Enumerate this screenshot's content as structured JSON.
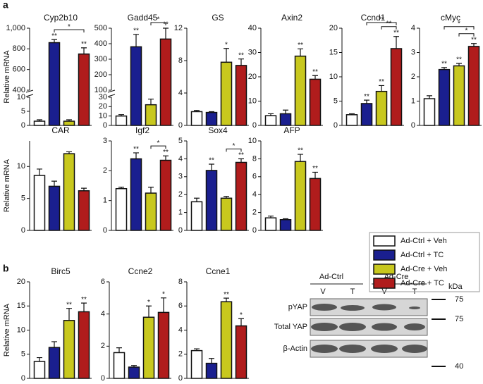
{
  "panel_labels": [
    "a",
    "b"
  ],
  "legend": [
    {
      "name": "Ad-Ctrl + Veh",
      "color": "#ffffff"
    },
    {
      "name": "Ad-Ctrl + TC",
      "color": "#1a1f8f"
    },
    {
      "name": "Ad-Cre + Veh",
      "color": "#c8c81e"
    },
    {
      "name": "Ad-Cre + TC",
      "color": "#b01c1c"
    }
  ],
  "chart_data": [
    {
      "type": "bar",
      "title": "Cyp2b10",
      "ylabel": "Relative mRNA",
      "segments": [
        {
          "ylim": [
            0,
            10
          ],
          "yticks": [
            0,
            5,
            10
          ]
        },
        {
          "ylim": [
            400,
            1000
          ],
          "yticks": [
            400,
            600,
            800,
            {
              "value": 1000,
              "label": "1,000"
            }
          ]
        }
      ],
      "values": [
        1.5,
        860,
        1.5,
        750
      ],
      "errors": [
        0.5,
        30,
        0.5,
        60
      ],
      "annotations": [
        null,
        "**",
        null,
        "**"
      ],
      "comparisons": [
        {
          "bars": [
            1,
            3
          ],
          "label": "*"
        }
      ]
    },
    {
      "type": "bar",
      "title": "Gadd45",
      "segments": [
        {
          "ylim": [
            0,
            30
          ],
          "yticks": [
            0,
            10,
            20,
            30
          ]
        },
        {
          "ylim": [
            100,
            500
          ],
          "yticks": [
            100,
            200,
            300,
            400,
            500
          ]
        }
      ],
      "values": [
        10,
        380,
        22,
        430
      ],
      "errors": [
        1.5,
        80,
        6,
        70
      ],
      "annotations": [
        null,
        "**",
        null,
        "**"
      ],
      "comparisons": [
        {
          "bars": [
            2,
            3
          ],
          "label": "*"
        }
      ]
    },
    {
      "type": "bar",
      "title": "GS",
      "ylim": [
        0,
        12
      ],
      "yticks": [
        0,
        4,
        8,
        12
      ],
      "values": [
        1.7,
        1.6,
        7.8,
        7.4
      ],
      "errors": [
        0.15,
        0.1,
        1.7,
        0.8
      ],
      "annotations": [
        null,
        null,
        "*",
        "**"
      ]
    },
    {
      "type": "bar",
      "title": "Axin2",
      "ylim": [
        0,
        40
      ],
      "yticks": [
        0,
        10,
        20,
        30,
        40
      ],
      "values": [
        4,
        4.8,
        28.5,
        19
      ],
      "errors": [
        0.8,
        1.5,
        3,
        1.5
      ],
      "annotations": [
        null,
        null,
        "**",
        "**"
      ]
    },
    {
      "type": "bar",
      "title": "Ccnd1",
      "ylim": [
        0,
        20
      ],
      "yticks": [
        0,
        5,
        10,
        15,
        20
      ],
      "values": [
        2.2,
        4.5,
        7,
        15.8
      ],
      "errors": [
        0.2,
        0.7,
        1.2,
        2.5
      ],
      "annotations": [
        null,
        "**",
        "**",
        "**"
      ],
      "comparisons": [
        {
          "bars": [
            2,
            3
          ],
          "label": "**"
        },
        {
          "bars": [
            1,
            3
          ],
          "label": "**"
        }
      ]
    },
    {
      "type": "bar",
      "title": "cMyc",
      "ylim": [
        0,
        4
      ],
      "yticks": [
        0,
        1,
        2,
        3,
        4
      ],
      "values": [
        1.1,
        2.3,
        2.45,
        3.25
      ],
      "errors": [
        0.12,
        0.08,
        0.1,
        0.12
      ],
      "annotations": [
        null,
        "**",
        "**",
        "**"
      ],
      "comparisons": [
        {
          "bars": [
            2,
            3
          ],
          "label": "*"
        },
        {
          "bars": [
            1,
            3
          ],
          "label": "*"
        }
      ]
    },
    {
      "type": "bar",
      "title": "CAR",
      "ylabel": "Relative mRNA",
      "ylim": [
        0,
        14
      ],
      "yticks": [
        0,
        5,
        10
      ],
      "values": [
        8.6,
        6.9,
        12,
        6.2
      ],
      "errors": [
        1,
        0.8,
        0.3,
        0.4
      ]
    },
    {
      "type": "bar",
      "title": "Igf2",
      "ylim": [
        0,
        3
      ],
      "yticks": [
        0,
        1,
        2,
        3
      ],
      "values": [
        1.4,
        2.4,
        1.25,
        2.35
      ],
      "errors": [
        0.05,
        0.2,
        0.2,
        0.15
      ],
      "annotations": [
        null,
        "**",
        null,
        "**"
      ],
      "comparisons": [
        {
          "bars": [
            2,
            3
          ],
          "label": "*"
        }
      ]
    },
    {
      "type": "bar",
      "title": "Sox4",
      "ylim": [
        0,
        5
      ],
      "yticks": [
        0,
        1,
        2,
        3,
        4,
        5
      ],
      "values": [
        1.6,
        3.35,
        1.8,
        3.8
      ],
      "errors": [
        0.2,
        0.35,
        0.1,
        0.2
      ],
      "annotations": [
        null,
        "**",
        null,
        "**"
      ],
      "comparisons": [
        {
          "bars": [
            2,
            3
          ],
          "label": "*"
        }
      ]
    },
    {
      "type": "bar",
      "title": "AFP",
      "ylim": [
        0,
        10
      ],
      "yticks": [
        0,
        2,
        4,
        6,
        8,
        10
      ],
      "values": [
        1.4,
        1.2,
        7.7,
        5.8
      ],
      "errors": [
        0.2,
        0.1,
        0.8,
        0.7
      ],
      "annotations": [
        null,
        null,
        "**",
        "**"
      ]
    },
    {
      "type": "bar",
      "title": "Birc5",
      "ylabel": "Relative mRNA",
      "ylim": [
        0,
        20
      ],
      "yticks": [
        0,
        5,
        10,
        15,
        20
      ],
      "values": [
        3.5,
        6.4,
        12,
        13.8
      ],
      "errors": [
        0.8,
        1.2,
        2.5,
        1.8
      ],
      "annotations": [
        null,
        null,
        "**",
        "**"
      ]
    },
    {
      "type": "bar",
      "title": "Ccne2",
      "ylim": [
        0,
        6
      ],
      "yticks": [
        0,
        2,
        4,
        6
      ],
      "values": [
        1.6,
        0.7,
        3.8,
        4.1
      ],
      "errors": [
        0.3,
        0.1,
        0.7,
        0.9
      ],
      "annotations": [
        null,
        null,
        "*",
        "*"
      ]
    },
    {
      "type": "bar",
      "title": "Ccne1",
      "ylim": [
        0,
        8
      ],
      "yticks": [
        0,
        2,
        4,
        6,
        8
      ],
      "values": [
        2.3,
        1.25,
        6.35,
        4.35
      ],
      "errors": [
        0.15,
        0.4,
        0.3,
        0.6
      ],
      "annotations": [
        null,
        null,
        "**",
        "*"
      ]
    }
  ],
  "blot": {
    "groups": [
      "Ad-Ctrl",
      "Ad-Cre"
    ],
    "lanes": [
      "V",
      "T",
      "V",
      "T"
    ],
    "unit": "kDa",
    "rows": [
      "pYAP",
      "Total YAP",
      "β-Actin"
    ],
    "markers": [
      "75",
      "75",
      "40"
    ]
  }
}
